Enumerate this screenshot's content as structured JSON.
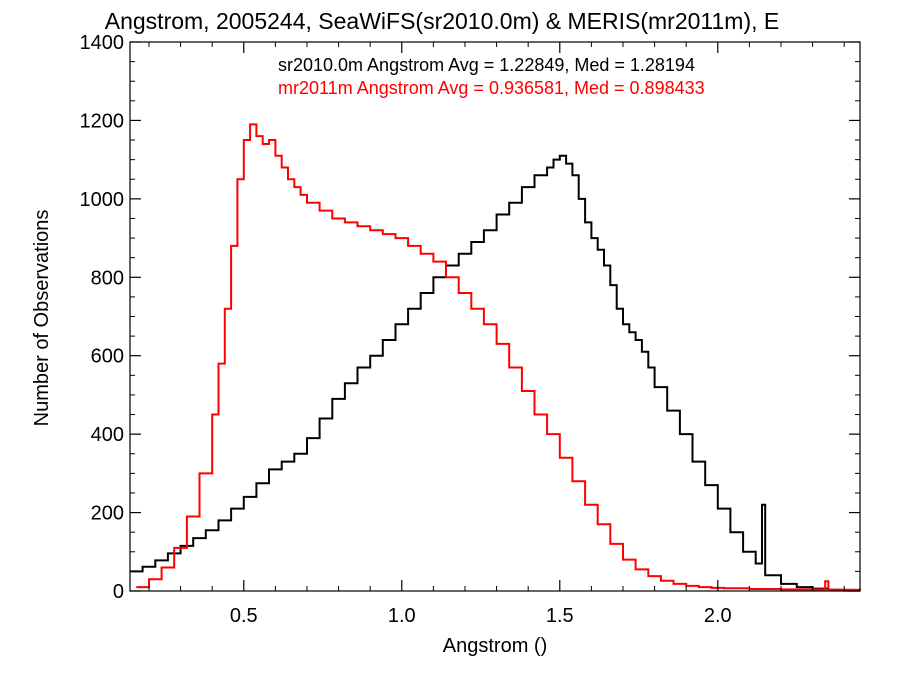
{
  "chart_data": {
    "type": "line",
    "title": "Angstrom, 2005244, SeaWiFS(sr2010.0m) & MERIS(mr2011m), E",
    "xlabel": "Angstrom ()",
    "ylabel": "Number of Observations",
    "xlim": [
      0.14,
      2.45
    ],
    "ylim": [
      0,
      1400
    ],
    "x_ticks": [
      0.5,
      1.0,
      1.5,
      2.0
    ],
    "x_tick_labels": [
      "0.5",
      "1.0",
      "1.5",
      "2.0"
    ],
    "y_ticks": [
      0,
      200,
      400,
      600,
      800,
      1000,
      1200,
      1400
    ],
    "y_tick_labels": [
      "0",
      "200",
      "400",
      "600",
      "800",
      "1000",
      "1200",
      "1400"
    ],
    "grid": false,
    "step_style": "histogram",
    "series": [
      {
        "name": "sr2010.0m Angstrom Avg = 1.22849, Med = 1.28194",
        "color": "#000000",
        "points": [
          [
            0.14,
            50
          ],
          [
            0.18,
            62
          ],
          [
            0.22,
            78
          ],
          [
            0.26,
            96
          ],
          [
            0.3,
            115
          ],
          [
            0.34,
            135
          ],
          [
            0.38,
            155
          ],
          [
            0.42,
            180
          ],
          [
            0.46,
            210
          ],
          [
            0.5,
            240
          ],
          [
            0.54,
            275
          ],
          [
            0.58,
            310
          ],
          [
            0.62,
            330
          ],
          [
            0.66,
            350
          ],
          [
            0.7,
            390
          ],
          [
            0.74,
            440
          ],
          [
            0.78,
            490
          ],
          [
            0.82,
            530
          ],
          [
            0.86,
            570
          ],
          [
            0.9,
            600
          ],
          [
            0.94,
            640
          ],
          [
            0.98,
            680
          ],
          [
            1.02,
            720
          ],
          [
            1.06,
            760
          ],
          [
            1.1,
            800
          ],
          [
            1.14,
            830
          ],
          [
            1.18,
            860
          ],
          [
            1.22,
            890
          ],
          [
            1.26,
            920
          ],
          [
            1.3,
            960
          ],
          [
            1.34,
            990
          ],
          [
            1.38,
            1030
          ],
          [
            1.42,
            1060
          ],
          [
            1.46,
            1080
          ],
          [
            1.48,
            1100
          ],
          [
            1.5,
            1110
          ],
          [
            1.52,
            1090
          ],
          [
            1.54,
            1060
          ],
          [
            1.56,
            1000
          ],
          [
            1.58,
            940
          ],
          [
            1.6,
            900
          ],
          [
            1.62,
            870
          ],
          [
            1.64,
            830
          ],
          [
            1.66,
            780
          ],
          [
            1.68,
            720
          ],
          [
            1.7,
            680
          ],
          [
            1.72,
            660
          ],
          [
            1.74,
            640
          ],
          [
            1.76,
            610
          ],
          [
            1.78,
            570
          ],
          [
            1.8,
            520
          ],
          [
            1.84,
            460
          ],
          [
            1.88,
            400
          ],
          [
            1.92,
            330
          ],
          [
            1.96,
            270
          ],
          [
            2.0,
            210
          ],
          [
            2.04,
            150
          ],
          [
            2.08,
            100
          ],
          [
            2.12,
            70
          ],
          [
            2.14,
            220
          ],
          [
            2.15,
            40
          ],
          [
            2.2,
            18
          ],
          [
            2.25,
            10
          ],
          [
            2.3,
            6
          ],
          [
            2.35,
            3
          ],
          [
            2.4,
            1
          ]
        ]
      },
      {
        "name": "mr2011m Angstrom Avg = 0.936581, Med = 0.898433",
        "color": "#ff0000",
        "points": [
          [
            0.16,
            10
          ],
          [
            0.2,
            30
          ],
          [
            0.24,
            60
          ],
          [
            0.28,
            110
          ],
          [
            0.32,
            190
          ],
          [
            0.36,
            300
          ],
          [
            0.4,
            450
          ],
          [
            0.42,
            580
          ],
          [
            0.44,
            720
          ],
          [
            0.46,
            880
          ],
          [
            0.48,
            1050
          ],
          [
            0.5,
            1150
          ],
          [
            0.52,
            1190
          ],
          [
            0.54,
            1160
          ],
          [
            0.56,
            1140
          ],
          [
            0.58,
            1150
          ],
          [
            0.6,
            1110
          ],
          [
            0.62,
            1080
          ],
          [
            0.64,
            1050
          ],
          [
            0.66,
            1030
          ],
          [
            0.68,
            1010
          ],
          [
            0.7,
            990
          ],
          [
            0.74,
            970
          ],
          [
            0.78,
            950
          ],
          [
            0.82,
            940
          ],
          [
            0.86,
            930
          ],
          [
            0.9,
            920
          ],
          [
            0.94,
            910
          ],
          [
            0.98,
            900
          ],
          [
            1.02,
            880
          ],
          [
            1.06,
            860
          ],
          [
            1.1,
            840
          ],
          [
            1.14,
            800
          ],
          [
            1.18,
            760
          ],
          [
            1.22,
            720
          ],
          [
            1.26,
            680
          ],
          [
            1.3,
            630
          ],
          [
            1.34,
            570
          ],
          [
            1.38,
            510
          ],
          [
            1.42,
            450
          ],
          [
            1.46,
            400
          ],
          [
            1.5,
            340
          ],
          [
            1.54,
            280
          ],
          [
            1.58,
            220
          ],
          [
            1.62,
            170
          ],
          [
            1.66,
            120
          ],
          [
            1.7,
            80
          ],
          [
            1.74,
            55
          ],
          [
            1.78,
            38
          ],
          [
            1.82,
            26
          ],
          [
            1.86,
            18
          ],
          [
            1.9,
            13
          ],
          [
            1.94,
            10
          ],
          [
            1.98,
            8
          ],
          [
            2.02,
            7
          ],
          [
            2.1,
            5
          ],
          [
            2.2,
            4
          ],
          [
            2.3,
            4
          ],
          [
            2.34,
            25
          ],
          [
            2.35,
            3
          ],
          [
            2.45,
            1
          ]
        ]
      }
    ]
  }
}
